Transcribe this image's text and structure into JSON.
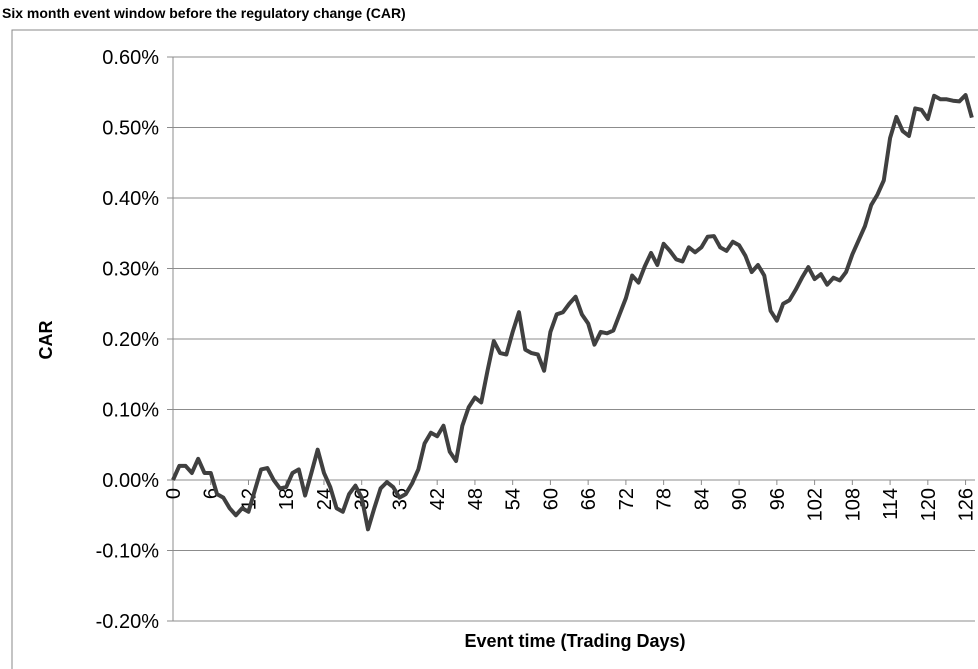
{
  "chart_data": {
    "type": "line",
    "title": "Six month event window before the regulatory change (CAR)",
    "x_label": "Event time (Trading Days)",
    "y_label": "CAR",
    "x": [
      0,
      1,
      2,
      3,
      4,
      5,
      6,
      7,
      8,
      9,
      10,
      11,
      12,
      13,
      14,
      15,
      16,
      17,
      18,
      19,
      20,
      21,
      22,
      23,
      24,
      25,
      26,
      27,
      28,
      29,
      30,
      31,
      32,
      33,
      34,
      35,
      36,
      37,
      38,
      39,
      40,
      41,
      42,
      43,
      44,
      45,
      46,
      47,
      48,
      49,
      50,
      51,
      52,
      53,
      54,
      55,
      56,
      57,
      58,
      59,
      60,
      61,
      62,
      63,
      64,
      65,
      66,
      67,
      68,
      69,
      70,
      71,
      72,
      73,
      74,
      75,
      76,
      77,
      78,
      79,
      80,
      81,
      82,
      83,
      84,
      85,
      86,
      87,
      88,
      89,
      90,
      91,
      92,
      93,
      94,
      95,
      96,
      97,
      98,
      99,
      100,
      101,
      102,
      103,
      104,
      105,
      106,
      107,
      108,
      109,
      110,
      111,
      112,
      113,
      114,
      115,
      116,
      117,
      118,
      119,
      120,
      121,
      122,
      123,
      124,
      125,
      126,
      127
    ],
    "series": [
      {
        "name": "CAR",
        "color": "#404040",
        "values": [
          0.0,
          0.02,
          0.02,
          0.01,
          0.03,
          0.01,
          0.01,
          -0.02,
          -0.025,
          -0.04,
          -0.05,
          -0.04,
          -0.045,
          -0.015,
          0.015,
          0.017,
          0.0,
          -0.012,
          -0.01,
          0.01,
          0.015,
          -0.022,
          0.01,
          0.043,
          0.01,
          -0.01,
          -0.04,
          -0.045,
          -0.02,
          -0.008,
          -0.025,
          -0.07,
          -0.04,
          -0.012,
          -0.003,
          -0.01,
          -0.025,
          -0.02,
          -0.005,
          0.015,
          0.052,
          0.067,
          0.062,
          0.077,
          0.04,
          0.027,
          0.077,
          0.103,
          0.117,
          0.11,
          0.155,
          0.197,
          0.18,
          0.178,
          0.21,
          0.238,
          0.185,
          0.18,
          0.178,
          0.155,
          0.21,
          0.235,
          0.238,
          0.25,
          0.26,
          0.235,
          0.222,
          0.192,
          0.21,
          0.208,
          0.212,
          0.235,
          0.258,
          0.29,
          0.28,
          0.303,
          0.322,
          0.305,
          0.335,
          0.325,
          0.313,
          0.31,
          0.33,
          0.323,
          0.33,
          0.345,
          0.346,
          0.33,
          0.325,
          0.338,
          0.333,
          0.318,
          0.295,
          0.305,
          0.29,
          0.24,
          0.226,
          0.25,
          0.255,
          0.27,
          0.287,
          0.302,
          0.285,
          0.292,
          0.277,
          0.287,
          0.283,
          0.295,
          0.32,
          0.34,
          0.36,
          0.39,
          0.405,
          0.425,
          0.485,
          0.515,
          0.495,
          0.488,
          0.527,
          0.525,
          0.512,
          0.545,
          0.54,
          0.54,
          0.538,
          0.537,
          0.546,
          0.514
        ]
      }
    ],
    "xlim": [
      0,
      127.5
    ],
    "xticks": [
      0,
      6,
      12,
      18,
      24,
      30,
      36,
      42,
      48,
      54,
      60,
      66,
      72,
      78,
      84,
      90,
      96,
      102,
      108,
      114,
      120,
      126
    ],
    "ylim": [
      -0.2,
      0.6
    ],
    "yticks": [
      {
        "value": -0.2,
        "label": "-0.20%"
      },
      {
        "value": -0.1,
        "label": "-0.10%"
      },
      {
        "value": 0.0,
        "label": "0.00%"
      },
      {
        "value": 0.1,
        "label": "0.10%"
      },
      {
        "value": 0.2,
        "label": "0.20%"
      },
      {
        "value": 0.3,
        "label": "0.30%"
      },
      {
        "value": 0.4,
        "label": "0.40%"
      },
      {
        "value": 0.5,
        "label": "0.50%"
      },
      {
        "value": 0.6,
        "label": "0.60%"
      }
    ],
    "grid": true
  }
}
